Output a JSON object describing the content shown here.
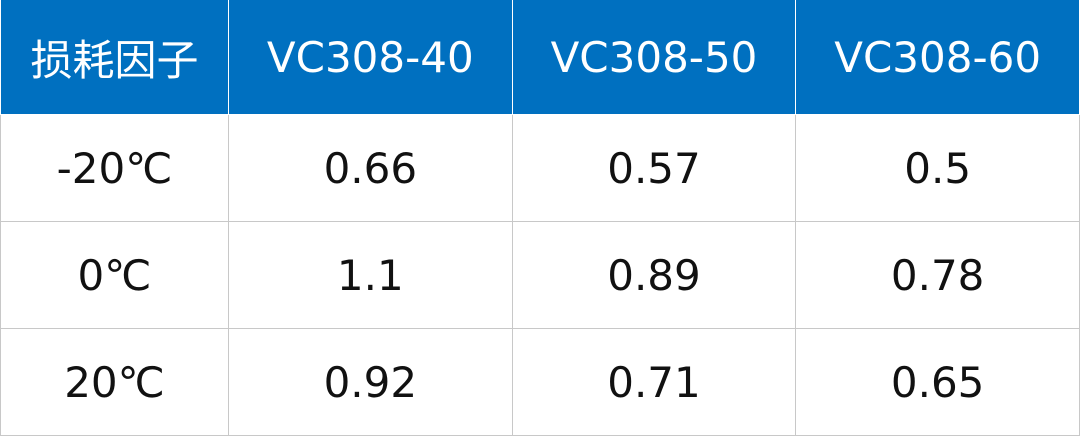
{
  "table": {
    "header": [
      "损耗因子",
      "VC308-40",
      "VC308-50",
      "VC308-60"
    ],
    "rows": [
      [
        "-20℃",
        "0.66",
        "0.57",
        "0.5"
      ],
      [
        "0℃",
        "1.1",
        "0.89",
        "0.78"
      ],
      [
        "20℃",
        "0.92",
        "0.71",
        "0.65"
      ]
    ]
  }
}
